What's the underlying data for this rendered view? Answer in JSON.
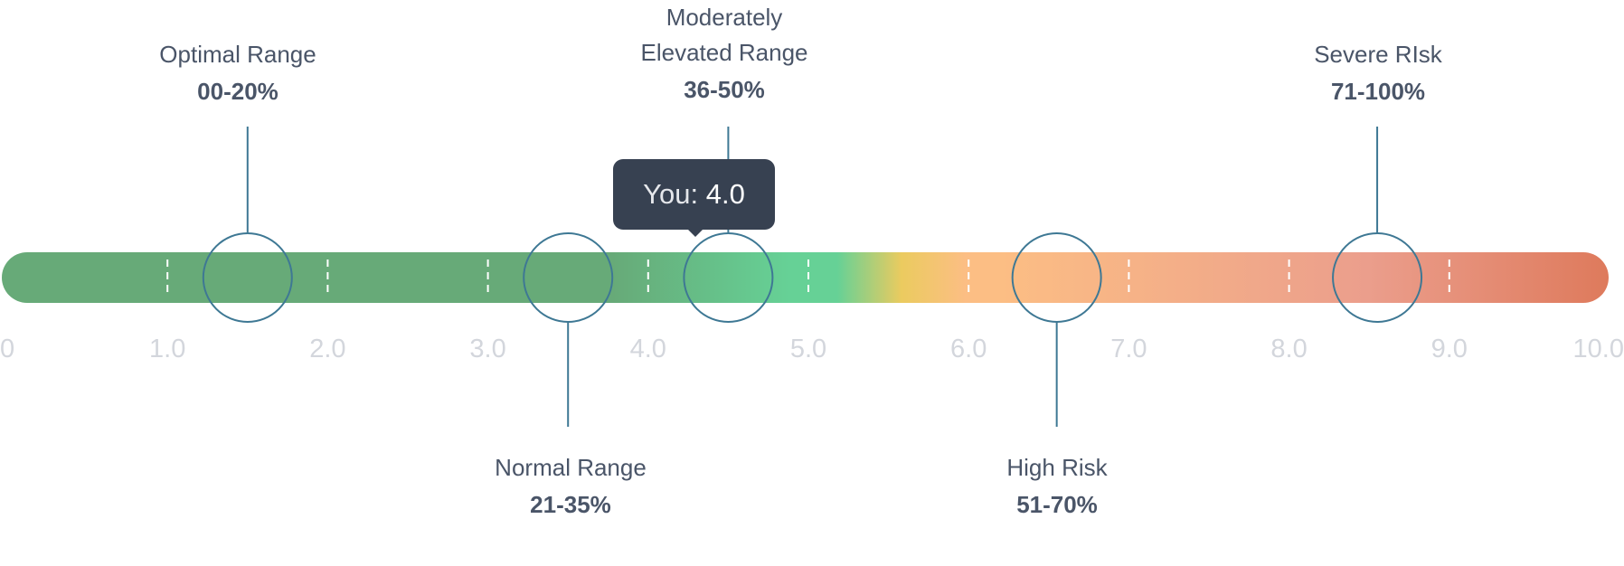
{
  "scale": {
    "min": 0,
    "max": 10,
    "tick_labels": [
      "0",
      "1.0",
      "2.0",
      "3.0",
      "4.0",
      "5.0",
      "6.0",
      "7.0",
      "8.0",
      "9.0",
      "10.0"
    ],
    "colors": {
      "green": "#67AA78",
      "light_green": "#66D196",
      "yellow": "#EBCB5F",
      "peach": "#FCBE84",
      "salmon": "#EB9E8C",
      "orange": "#DE7A5C",
      "ring": "#3E7894",
      "tick_label": "#D3D6DC"
    }
  },
  "ranges": [
    {
      "name": "Optimal Range",
      "percent": "00-20%",
      "position": "top",
      "marker_value": 1.5
    },
    {
      "name": "Normal Range",
      "percent": "21-35%",
      "position": "bottom",
      "marker_value": 3.5
    },
    {
      "name_line1": "Moderately",
      "name_line2": "Elevated Range",
      "percent": "36-50%",
      "position": "top",
      "marker_value": 4.5
    },
    {
      "name": "High Risk",
      "percent": "51-70%",
      "position": "bottom",
      "marker_value": 6.55
    },
    {
      "name": "Severe RIsk",
      "percent": "71-100%",
      "position": "top",
      "marker_value": 8.55
    }
  ],
  "tooltip": {
    "prefix": "You:",
    "value": "4.0"
  }
}
